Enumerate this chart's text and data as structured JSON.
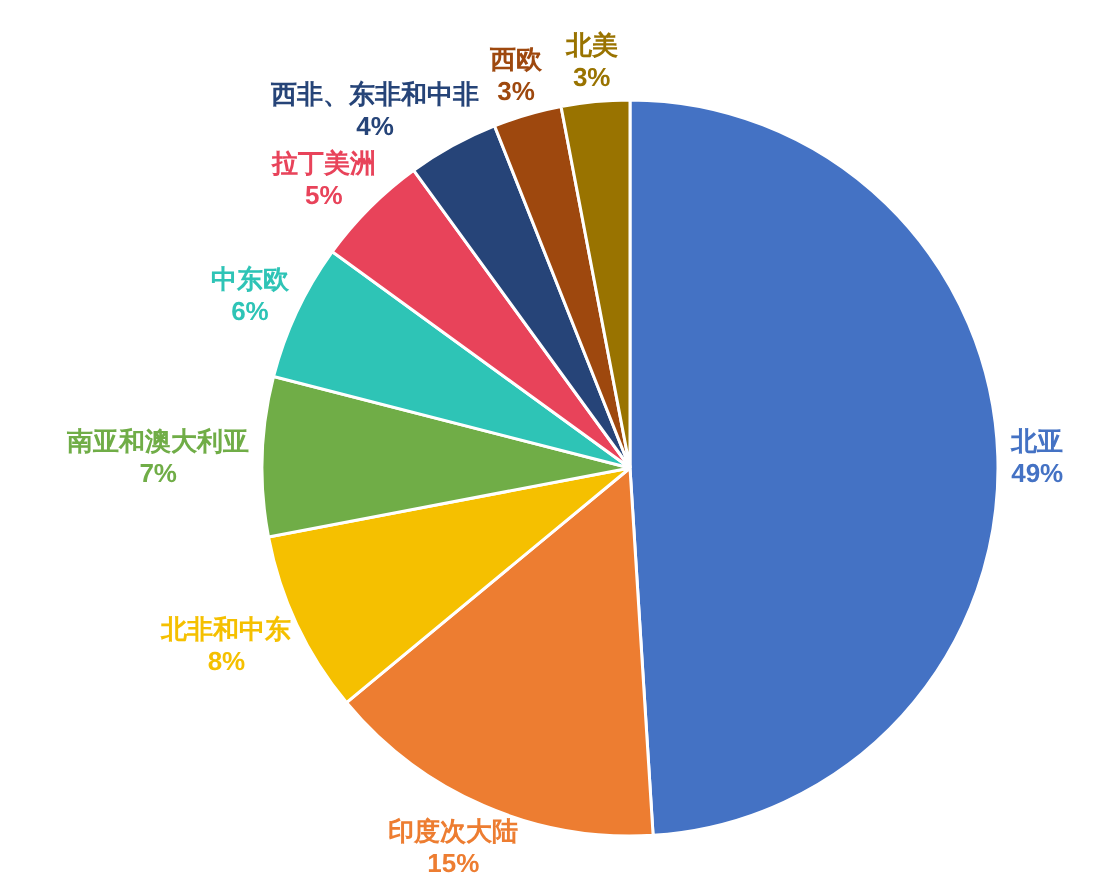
{
  "chart_data": {
    "type": "pie",
    "categories": [
      "北亚",
      "印度次大陆",
      "北非和中东",
      "南亚和澳大利亚",
      "中东欧",
      "拉丁美洲",
      "西非、东非和中非",
      "西欧",
      "北美"
    ],
    "values": [
      49,
      15,
      8,
      7,
      6,
      5,
      4,
      3,
      3
    ],
    "value_labels": [
      "49%",
      "15%",
      "8%",
      "7%",
      "6%",
      "5%",
      "4%",
      "3%",
      "3%"
    ],
    "colors": [
      "#4472c4",
      "#ed7d31",
      "#f5c000",
      "#70ad47",
      "#2ec4b6",
      "#e8435a",
      "#264478",
      "#9e480e",
      "#997300"
    ]
  }
}
